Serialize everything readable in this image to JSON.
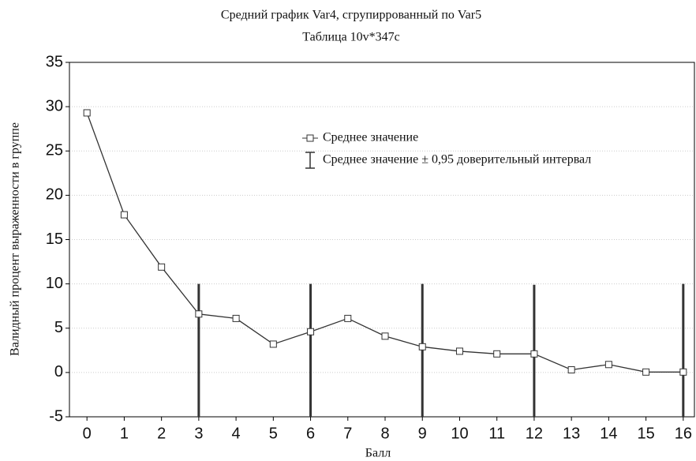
{
  "chart_data": {
    "type": "line",
    "title": "Средний график Var4, сгрупиррованный по Var5",
    "subtitle": "Таблица 10v*347c",
    "x_label": "Балл",
    "y_label": "Валидный процент выраженности в группе",
    "x": [
      0,
      1,
      2,
      3,
      4,
      5,
      6,
      7,
      8,
      9,
      10,
      11,
      12,
      13,
      14,
      15,
      16
    ],
    "series": [
      {
        "name": "Среднее значение",
        "color": "#333333",
        "values": [
          29.3,
          17.8,
          11.9,
          6.6,
          6.1,
          3.2,
          4.6,
          6.1,
          4.1,
          2.9,
          2.4,
          2.1,
          2.1,
          0.3,
          0.9,
          0.05,
          0.05
        ]
      }
    ],
    "error_bars": {
      "name": "Среднее значение ± 0,95 доверительный интервал",
      "color": "#333333",
      "x": [
        3,
        6,
        9,
        12,
        16
      ],
      "low": [
        -5,
        -5,
        -5,
        -5,
        -5
      ],
      "high": [
        10,
        10,
        10,
        9.9,
        10
      ]
    },
    "xlim": [
      -0.47,
      16.3
    ],
    "ylim": [
      -5,
      35
    ],
    "xticks": [
      0,
      1,
      2,
      3,
      4,
      5,
      6,
      7,
      8,
      9,
      10,
      11,
      12,
      13,
      14,
      15,
      16
    ],
    "yticks": [
      -5,
      0,
      5,
      10,
      15,
      20,
      25,
      30,
      35
    ],
    "grid": true
  }
}
